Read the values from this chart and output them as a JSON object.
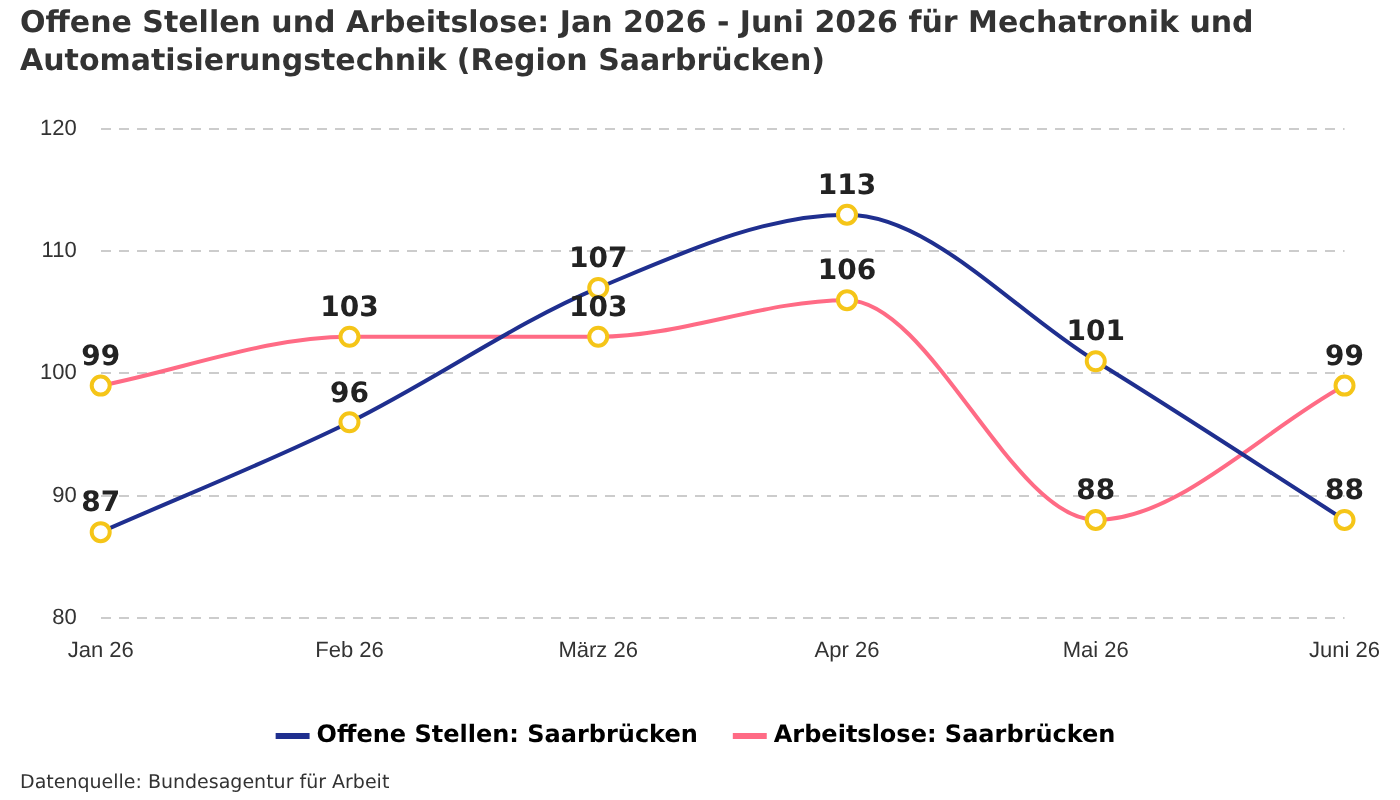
{
  "chart_data": {
    "type": "line",
    "title": "Offene Stellen und Arbeitslose: Jan 2026 - Juni 2026 für Mechatronik und Automatisierungstechnik (Region Saarbrücken)",
    "categories": [
      "Jan 26",
      "Feb 26",
      "März 26",
      "Apr 26",
      "Mai 26",
      "Juni 26"
    ],
    "series": [
      {
        "name": "Offene Stellen: Saarbrücken",
        "color": "#1f2f8f",
        "values": [
          87,
          96,
          107,
          113,
          101,
          88
        ]
      },
      {
        "name": "Arbeitslose: Saarbrücken",
        "color": "#ff6b85",
        "values": [
          99,
          103,
          103,
          106,
          88,
          99
        ]
      }
    ],
    "ylim": [
      80,
      120
    ],
    "yticks": [
      80,
      90,
      100,
      110,
      120
    ],
    "grid": "y",
    "legend": "bottom",
    "marker": "circle",
    "line_style": "solid",
    "data_labels": true,
    "annotations": [
      "Datenquelle: Bundesagentur für Arbeit"
    ]
  }
}
